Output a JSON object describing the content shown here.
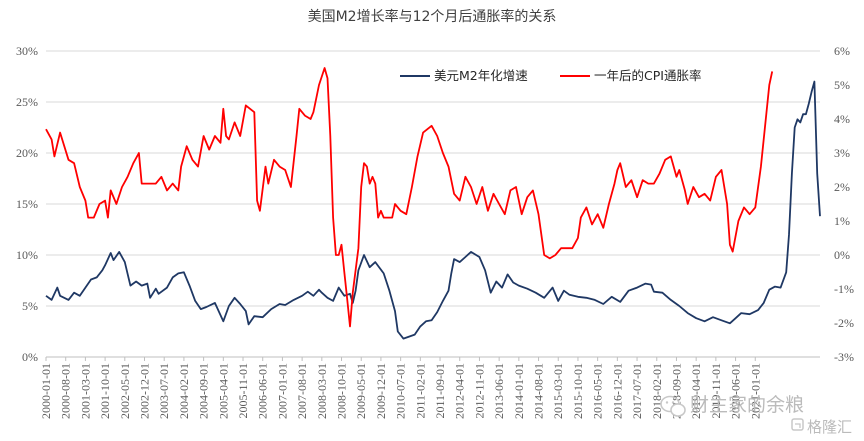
{
  "chart_data": {
    "type": "line",
    "title": "美国M2增长率与12个月后通胀率的关系",
    "y_left": {
      "min": 0,
      "max": 30,
      "ticks": [
        "0%",
        "5%",
        "10%",
        "15%",
        "20%",
        "25%",
        "30%"
      ]
    },
    "y_right": {
      "min": -3,
      "max": 6,
      "ticks": [
        "-3%",
        "-2%",
        "-1%",
        "0%",
        "1%",
        "2%",
        "3%",
        "4%",
        "5%",
        "6%"
      ]
    },
    "x_range": [
      "2000-01",
      "2022-12"
    ],
    "x_ticks": [
      "2000-01-01",
      "2000-08-01",
      "2001-03-01",
      "2001-10-01",
      "2002-05-01",
      "2002-12-01",
      "2003-07-01",
      "2004-02-01",
      "2004-09-01",
      "2005-04-01",
      "2005-11-01",
      "2006-06-01",
      "2007-01-01",
      "2007-08-01",
      "2008-03-01",
      "2008-10-01",
      "2009-05-01",
      "2009-12-01",
      "2010-07-01",
      "2011-02-01",
      "2011-09-01",
      "2012-04-01",
      "2012-11-01",
      "2013-06-01",
      "2014-01-01",
      "2014-08-01",
      "2015-03-01",
      "2015-10-01",
      "2016-05-01",
      "2016-12-01",
      "2017-07-01",
      "2018-02-01",
      "2018-09-01",
      "2019-04-01",
      "2019-11-01",
      "2020-06-01",
      "2021-01-01"
    ],
    "grid": true,
    "legend_position": "top-right",
    "series": [
      {
        "name": "美元M2年化增速",
        "color": "#1f3864",
        "axis": "left",
        "points": [
          [
            "2000-01",
            6.0
          ],
          [
            "2000-03",
            5.6
          ],
          [
            "2000-05",
            6.8
          ],
          [
            "2000-06",
            6.0
          ],
          [
            "2000-09",
            5.6
          ],
          [
            "2000-11",
            6.3
          ],
          [
            "2001-01",
            6.0
          ],
          [
            "2001-03",
            6.8
          ],
          [
            "2001-05",
            7.6
          ],
          [
            "2001-07",
            7.8
          ],
          [
            "2001-09",
            8.5
          ],
          [
            "2001-10",
            9.0
          ],
          [
            "2001-12",
            10.2
          ],
          [
            "2002-01",
            9.5
          ],
          [
            "2002-03",
            10.3
          ],
          [
            "2002-05",
            9.3
          ],
          [
            "2002-07",
            7.0
          ],
          [
            "2002-09",
            7.4
          ],
          [
            "2002-11",
            7.0
          ],
          [
            "2003-01",
            7.2
          ],
          [
            "2003-02",
            5.8
          ],
          [
            "2003-04",
            6.7
          ],
          [
            "2003-05",
            6.2
          ],
          [
            "2003-08",
            6.8
          ],
          [
            "2003-10",
            7.8
          ],
          [
            "2003-12",
            8.2
          ],
          [
            "2004-02",
            8.3
          ],
          [
            "2004-04",
            7.0
          ],
          [
            "2004-06",
            5.5
          ],
          [
            "2004-08",
            4.7
          ],
          [
            "2004-10",
            4.9
          ],
          [
            "2005-01",
            5.3
          ],
          [
            "2005-04",
            3.5
          ],
          [
            "2005-06",
            5.0
          ],
          [
            "2005-08",
            5.8
          ],
          [
            "2005-10",
            5.2
          ],
          [
            "2005-12",
            4.5
          ],
          [
            "2006-01",
            3.2
          ],
          [
            "2006-03",
            4.0
          ],
          [
            "2006-06",
            3.9
          ],
          [
            "2006-09",
            4.7
          ],
          [
            "2006-12",
            5.2
          ],
          [
            "2007-02",
            5.1
          ],
          [
            "2007-05",
            5.6
          ],
          [
            "2007-08",
            6.0
          ],
          [
            "2007-10",
            6.4
          ],
          [
            "2007-12",
            6.0
          ],
          [
            "2008-02",
            6.6
          ],
          [
            "2008-03",
            6.3
          ],
          [
            "2008-05",
            5.8
          ],
          [
            "2008-07",
            5.5
          ],
          [
            "2008-09",
            6.8
          ],
          [
            "2008-11",
            6.0
          ],
          [
            "2009-01",
            6.2
          ],
          [
            "2009-02",
            5.3
          ],
          [
            "2009-03",
            6.5
          ],
          [
            "2009-04",
            8.5
          ],
          [
            "2009-06",
            10.0
          ],
          [
            "2009-08",
            8.8
          ],
          [
            "2009-10",
            9.3
          ],
          [
            "2010-01",
            8.2
          ],
          [
            "2010-03",
            6.5
          ],
          [
            "2010-05",
            4.5
          ],
          [
            "2010-06",
            2.5
          ],
          [
            "2010-08",
            1.8
          ],
          [
            "2010-10",
            2.0
          ],
          [
            "2010-12",
            2.2
          ],
          [
            "2011-02",
            3.0
          ],
          [
            "2011-04",
            3.5
          ],
          [
            "2011-06",
            3.6
          ],
          [
            "2011-08",
            4.4
          ],
          [
            "2011-10",
            5.5
          ],
          [
            "2011-12",
            6.5
          ],
          [
            "2012-01",
            8.2
          ],
          [
            "2012-02",
            9.6
          ],
          [
            "2012-04",
            9.3
          ],
          [
            "2012-06",
            9.8
          ],
          [
            "2012-08",
            10.3
          ],
          [
            "2012-11",
            9.8
          ],
          [
            "2013-01",
            8.5
          ],
          [
            "2013-03",
            6.3
          ],
          [
            "2013-05",
            7.4
          ],
          [
            "2013-07",
            6.8
          ],
          [
            "2013-09",
            8.1
          ],
          [
            "2013-11",
            7.3
          ],
          [
            "2014-01",
            7.0
          ],
          [
            "2014-04",
            6.7
          ],
          [
            "2014-07",
            6.3
          ],
          [
            "2014-10",
            5.8
          ],
          [
            "2015-01",
            6.8
          ],
          [
            "2015-03",
            5.5
          ],
          [
            "2015-05",
            6.5
          ],
          [
            "2015-07",
            6.1
          ],
          [
            "2015-10",
            5.9
          ],
          [
            "2016-01",
            5.8
          ],
          [
            "2016-04",
            5.6
          ],
          [
            "2016-07",
            5.2
          ],
          [
            "2016-10",
            5.9
          ],
          [
            "2017-01",
            5.4
          ],
          [
            "2017-04",
            6.5
          ],
          [
            "2017-07",
            6.8
          ],
          [
            "2017-10",
            7.2
          ],
          [
            "2017-12",
            7.1
          ],
          [
            "2018-01",
            6.4
          ],
          [
            "2018-04",
            6.3
          ],
          [
            "2018-07",
            5.6
          ],
          [
            "2018-10",
            5.0
          ],
          [
            "2019-01",
            4.3
          ],
          [
            "2019-04",
            3.8
          ],
          [
            "2019-07",
            3.5
          ],
          [
            "2019-10",
            3.9
          ],
          [
            "2020-01",
            3.6
          ],
          [
            "2020-04",
            3.3
          ],
          [
            "2020-06",
            3.8
          ],
          [
            "2020-08",
            4.3
          ],
          [
            "2020-11",
            4.2
          ],
          [
            "2021-02",
            4.6
          ],
          [
            "2021-04",
            5.3
          ],
          [
            "2021-06",
            6.6
          ],
          [
            "2021-08",
            6.9
          ],
          [
            "2021-10",
            6.8
          ],
          [
            "2021-12",
            8.3
          ],
          [
            "2022-01",
            12.0
          ],
          [
            "2022-02",
            18.0
          ],
          [
            "2022-03",
            22.5
          ],
          [
            "2022-04",
            23.3
          ],
          [
            "2022-05",
            23.0
          ],
          [
            "2022-06",
            23.8
          ],
          [
            "2022-07",
            23.8
          ],
          [
            "2022-08",
            24.8
          ],
          [
            "2022-09",
            26.0
          ],
          [
            "2022-10",
            27.0
          ],
          [
            "2022-11",
            18.0
          ],
          [
            "2022-12",
            13.8
          ]
        ]
      },
      {
        "name": "一年后的CPI通胀率",
        "color": "#ff0000",
        "axis": "right",
        "points": [
          [
            "2000-01",
            3.7
          ],
          [
            "2000-03",
            3.4
          ],
          [
            "2000-04",
            2.9
          ],
          [
            "2000-06",
            3.6
          ],
          [
            "2000-09",
            2.8
          ],
          [
            "2000-11",
            2.7
          ],
          [
            "2001-01",
            2.0
          ],
          [
            "2001-03",
            1.6
          ],
          [
            "2001-04",
            1.1
          ],
          [
            "2001-06",
            1.1
          ],
          [
            "2001-08",
            1.5
          ],
          [
            "2001-10",
            1.6
          ],
          [
            "2001-11",
            1.1
          ],
          [
            "2001-12",
            1.9
          ],
          [
            "2002-02",
            1.5
          ],
          [
            "2002-04",
            2.0
          ],
          [
            "2002-06",
            2.3
          ],
          [
            "2002-08",
            2.7
          ],
          [
            "2002-10",
            3.0
          ],
          [
            "2002-11",
            2.1
          ],
          [
            "2003-01",
            2.1
          ],
          [
            "2003-04",
            2.1
          ],
          [
            "2003-06",
            2.3
          ],
          [
            "2003-08",
            1.9
          ],
          [
            "2003-10",
            2.1
          ],
          [
            "2003-12",
            1.9
          ],
          [
            "2004-01",
            2.6
          ],
          [
            "2004-03",
            3.2
          ],
          [
            "2004-05",
            2.8
          ],
          [
            "2004-07",
            2.6
          ],
          [
            "2004-09",
            3.5
          ],
          [
            "2004-11",
            3.1
          ],
          [
            "2005-01",
            3.5
          ],
          [
            "2005-03",
            3.3
          ],
          [
            "2005-04",
            4.3
          ],
          [
            "2005-05",
            3.5
          ],
          [
            "2005-06",
            3.4
          ],
          [
            "2005-08",
            3.9
          ],
          [
            "2005-10",
            3.5
          ],
          [
            "2005-12",
            4.4
          ],
          [
            "2006-03",
            4.2
          ],
          [
            "2006-04",
            1.6
          ],
          [
            "2006-05",
            1.3
          ],
          [
            "2006-07",
            2.6
          ],
          [
            "2006-08",
            2.1
          ],
          [
            "2006-10",
            2.8
          ],
          [
            "2006-12",
            2.6
          ],
          [
            "2007-02",
            2.5
          ],
          [
            "2007-04",
            2.0
          ],
          [
            "2007-06",
            3.5
          ],
          [
            "2007-07",
            4.3
          ],
          [
            "2007-09",
            4.1
          ],
          [
            "2007-11",
            4.0
          ],
          [
            "2007-12",
            4.2
          ],
          [
            "2008-02",
            5.0
          ],
          [
            "2008-04",
            5.5
          ],
          [
            "2008-05",
            5.2
          ],
          [
            "2008-06",
            3.5
          ],
          [
            "2008-07",
            1.1
          ],
          [
            "2008-08",
            0.0
          ],
          [
            "2008-09",
            0.0
          ],
          [
            "2008-10",
            0.3
          ],
          [
            "2008-11",
            -0.5
          ],
          [
            "2008-12",
            -1.3
          ],
          [
            "2009-01",
            -2.1
          ],
          [
            "2009-02",
            -1.1
          ],
          [
            "2009-04",
            0.2
          ],
          [
            "2009-05",
            2.0
          ],
          [
            "2009-06",
            2.7
          ],
          [
            "2009-07",
            2.6
          ],
          [
            "2009-08",
            2.1
          ],
          [
            "2009-09",
            2.3
          ],
          [
            "2009-10",
            2.1
          ],
          [
            "2009-11",
            1.1
          ],
          [
            "2009-12",
            1.3
          ],
          [
            "2010-01",
            1.1
          ],
          [
            "2010-04",
            1.1
          ],
          [
            "2010-05",
            1.5
          ],
          [
            "2010-07",
            1.3
          ],
          [
            "2010-09",
            1.2
          ],
          [
            "2010-11",
            2.0
          ],
          [
            "2011-01",
            2.9
          ],
          [
            "2011-03",
            3.6
          ],
          [
            "2011-06",
            3.8
          ],
          [
            "2011-08",
            3.5
          ],
          [
            "2011-10",
            3.0
          ],
          [
            "2011-12",
            2.6
          ],
          [
            "2012-02",
            1.8
          ],
          [
            "2012-04",
            1.6
          ],
          [
            "2012-06",
            2.3
          ],
          [
            "2012-08",
            2.0
          ],
          [
            "2012-10",
            1.5
          ],
          [
            "2012-12",
            2.0
          ],
          [
            "2013-02",
            1.3
          ],
          [
            "2013-04",
            1.8
          ],
          [
            "2013-06",
            1.5
          ],
          [
            "2013-08",
            1.2
          ],
          [
            "2013-10",
            1.9
          ],
          [
            "2013-12",
            2.0
          ],
          [
            "2014-02",
            1.2
          ],
          [
            "2014-04",
            1.7
          ],
          [
            "2014-06",
            1.9
          ],
          [
            "2014-08",
            1.2
          ],
          [
            "2014-10",
            0.0
          ],
          [
            "2014-12",
            -0.1
          ],
          [
            "2015-02",
            0.0
          ],
          [
            "2015-04",
            0.2
          ],
          [
            "2015-06",
            0.2
          ],
          [
            "2015-08",
            0.2
          ],
          [
            "2015-10",
            0.5
          ],
          [
            "2015-11",
            1.1
          ],
          [
            "2016-01",
            1.4
          ],
          [
            "2016-03",
            0.9
          ],
          [
            "2016-05",
            1.2
          ],
          [
            "2016-07",
            0.8
          ],
          [
            "2016-09",
            1.5
          ],
          [
            "2016-11",
            2.1
          ],
          [
            "2016-12",
            2.5
          ],
          [
            "2017-01",
            2.7
          ],
          [
            "2017-03",
            2.0
          ],
          [
            "2017-05",
            2.2
          ],
          [
            "2017-07",
            1.7
          ],
          [
            "2017-09",
            2.2
          ],
          [
            "2017-11",
            2.1
          ],
          [
            "2018-01",
            2.1
          ],
          [
            "2018-03",
            2.4
          ],
          [
            "2018-05",
            2.8
          ],
          [
            "2018-07",
            2.9
          ],
          [
            "2018-09",
            2.3
          ],
          [
            "2018-10",
            2.5
          ],
          [
            "2018-12",
            1.9
          ],
          [
            "2019-01",
            1.5
          ],
          [
            "2019-03",
            2.0
          ],
          [
            "2019-05",
            1.7
          ],
          [
            "2019-07",
            1.8
          ],
          [
            "2019-09",
            1.6
          ],
          [
            "2019-11",
            2.3
          ],
          [
            "2020-01",
            2.5
          ],
          [
            "2020-03",
            1.5
          ],
          [
            "2020-04",
            0.3
          ],
          [
            "2020-05",
            0.1
          ],
          [
            "2020-07",
            1.0
          ],
          [
            "2020-09",
            1.4
          ],
          [
            "2020-11",
            1.2
          ],
          [
            "2021-01",
            1.4
          ],
          [
            "2021-03",
            2.6
          ],
          [
            "2021-05",
            4.2
          ],
          [
            "2021-06",
            5.0
          ],
          [
            "2021-07",
            5.4
          ]
        ]
      }
    ]
  },
  "watermark": {
    "brand": "财主家的余粮",
    "source": "格隆汇"
  }
}
